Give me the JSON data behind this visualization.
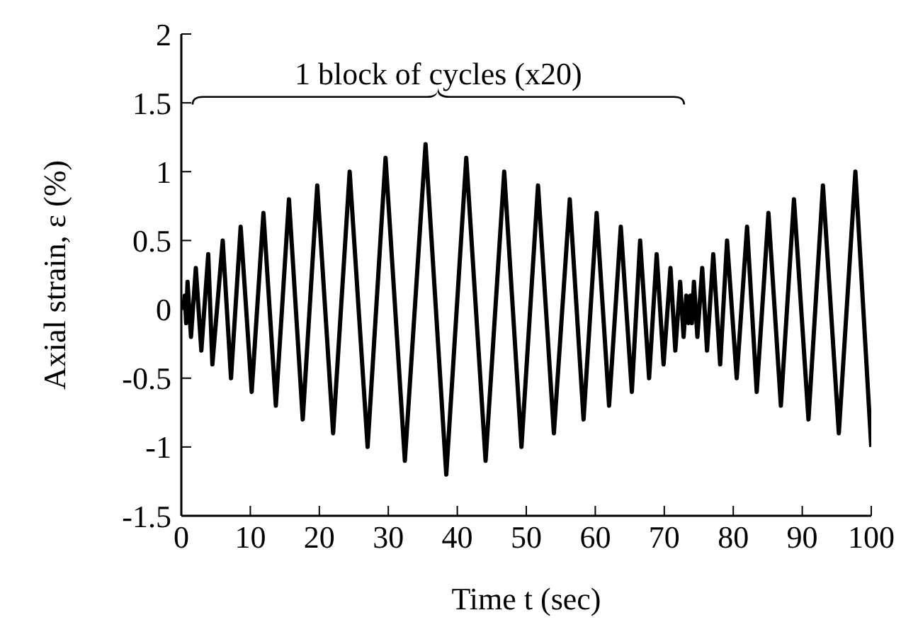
{
  "chart_data": {
    "type": "line",
    "xlabel": "Time  t (sec)",
    "ylabel": "Axial strain, ε (%)",
    "annotations": [
      "1 block of cycles (x20)"
    ],
    "xlim": [
      0,
      100
    ],
    "xticks": [
      0,
      10,
      20,
      30,
      40,
      50,
      60,
      70,
      80,
      90,
      100
    ],
    "ylim": [
      -1.5,
      2
    ],
    "yticks": [
      -1.5,
      -1,
      -0.5,
      0,
      0.5,
      1,
      1.5,
      2
    ],
    "grid": false,
    "legend": false,
    "marker": "none",
    "line_style": "solid",
    "series": [
      {
        "color": "#000000",
        "x": [
          0.3,
          0.5,
          0.7,
          0.9,
          1.4,
          2.1,
          2.9,
          3.9,
          4.5,
          6.0,
          7.2,
          8.6,
          10.2,
          11.9,
          13.7,
          15.6,
          17.6,
          19.7,
          22.0,
          24.4,
          27.0,
          29.6,
          32.4,
          35.4,
          38.4,
          41.3,
          44.1,
          46.8,
          49.3,
          51.7,
          54.0,
          56.3,
          58.3,
          60.2,
          62.0,
          63.7,
          65.3,
          66.5,
          67.8,
          68.9,
          69.9,
          70.9,
          71.6,
          72.3,
          72.8,
          73.2,
          73.5,
          73.8,
          74.0,
          74.3,
          74.8,
          75.5,
          76.2,
          77.1,
          78.1,
          79.1,
          80.5,
          82.0,
          83.4,
          85.1,
          86.9,
          88.8,
          90.9,
          93.0,
          95.3,
          97.7,
          100
        ],
        "values": [
          0,
          0.1,
          -0.1,
          0.2,
          -0.2,
          0.3,
          -0.3,
          0.4,
          -0.4,
          0.5,
          -0.5,
          0.6,
          -0.6,
          0.7,
          -0.7,
          0.8,
          -0.8,
          0.9,
          -0.9,
          1.0,
          -1.0,
          1.1,
          -1.1,
          1.2,
          -1.2,
          1.1,
          -1.1,
          1.0,
          -1.0,
          0.9,
          -0.9,
          0.8,
          -0.8,
          0.7,
          -0.7,
          0.6,
          -0.6,
          0.5,
          -0.5,
          0.4,
          -0.4,
          0.3,
          -0.3,
          0.2,
          -0.2,
          0.1,
          -0.1,
          0.1,
          -0.1,
          0.2,
          -0.2,
          0.3,
          -0.3,
          0.4,
          -0.4,
          0.5,
          -0.5,
          0.6,
          -0.6,
          0.7,
          -0.7,
          0.8,
          -0.8,
          0.9,
          -0.9,
          1.0,
          -1.0
        ]
      }
    ]
  }
}
